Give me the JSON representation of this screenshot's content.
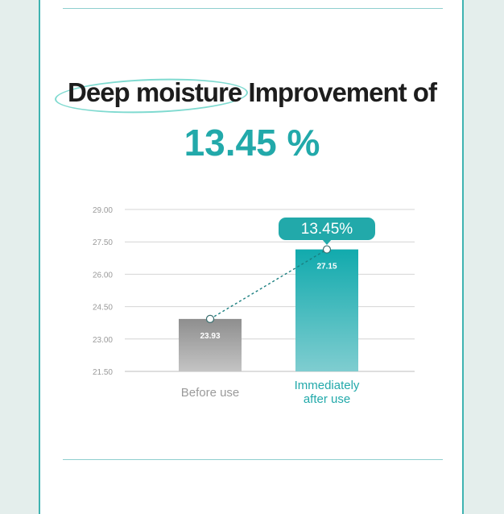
{
  "headline": {
    "highlight": "Deep moisture",
    "rest": "Improvement of",
    "value": "13.45 %"
  },
  "chart_data": {
    "type": "bar",
    "categories": [
      "Before use",
      "Immediately\nafter use"
    ],
    "values": [
      23.93,
      27.15
    ],
    "value_labels": [
      "23.93",
      "27.15"
    ],
    "yticks": [
      "29.00",
      "27.50",
      "26.00",
      "24.50",
      "23.00",
      "21.50"
    ],
    "ylim": [
      21.5,
      29.0
    ],
    "callout": "13.45%",
    "grid": true,
    "colors": {
      "before_top": "#8e8e8e",
      "before_bottom": "#c4c4c4",
      "after_top": "#11aaad",
      "after_bottom": "#7fcdd0",
      "accent": "#22a9aa",
      "grid": "#d4d4d4",
      "label_gray": "#9a9a9a"
    }
  }
}
